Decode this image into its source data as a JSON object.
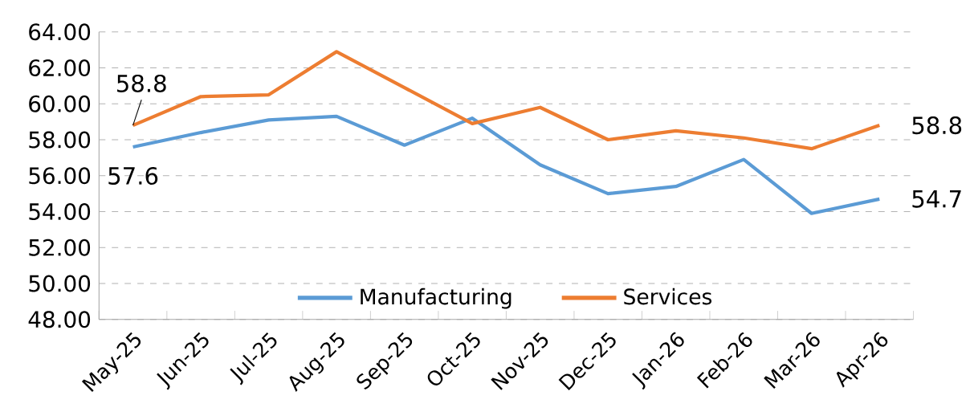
{
  "chart_data": {
    "type": "line",
    "categories": [
      "May-25",
      "Jun-25",
      "Jul-25",
      "Aug-25",
      "Sep-25",
      "Oct-25",
      "Nov-25",
      "Dec-25",
      "Jan-26",
      "Feb-26",
      "Mar-26",
      "Apr-26"
    ],
    "series": [
      {
        "name": "Manufacturing",
        "color": "#5b9bd5",
        "values": [
          57.6,
          58.4,
          59.1,
          59.3,
          57.7,
          59.2,
          56.6,
          55.0,
          55.4,
          56.9,
          53.9,
          54.7
        ],
        "value_labels": [
          "57.6",
          null,
          null,
          null,
          null,
          null,
          null,
          null,
          null,
          null,
          null,
          "54.7"
        ]
      },
      {
        "name": "Services",
        "color": "#ed7d31",
        "values": [
          58.8,
          60.4,
          60.5,
          62.9,
          60.9,
          58.9,
          59.8,
          58.0,
          58.5,
          58.1,
          57.5,
          58.8
        ],
        "value_labels": [
          "58.8",
          null,
          null,
          null,
          null,
          null,
          null,
          null,
          null,
          null,
          null,
          "58.8"
        ]
      }
    ],
    "ylim": [
      48,
      64
    ],
    "yticks": [
      {
        "value": 48,
        "label": "48.00"
      },
      {
        "value": 50,
        "label": "50.00"
      },
      {
        "value": 52,
        "label": "52.00"
      },
      {
        "value": 54,
        "label": "54.00"
      },
      {
        "value": 56,
        "label": "56.00"
      },
      {
        "value": 58,
        "label": "58.00"
      },
      {
        "value": 60,
        "label": "60.00"
      },
      {
        "value": 62,
        "label": "62.00"
      },
      {
        "value": 64,
        "label": "64.00"
      }
    ],
    "grid": "y",
    "legend": "bottom",
    "marker": "none",
    "line_style": "solid"
  }
}
